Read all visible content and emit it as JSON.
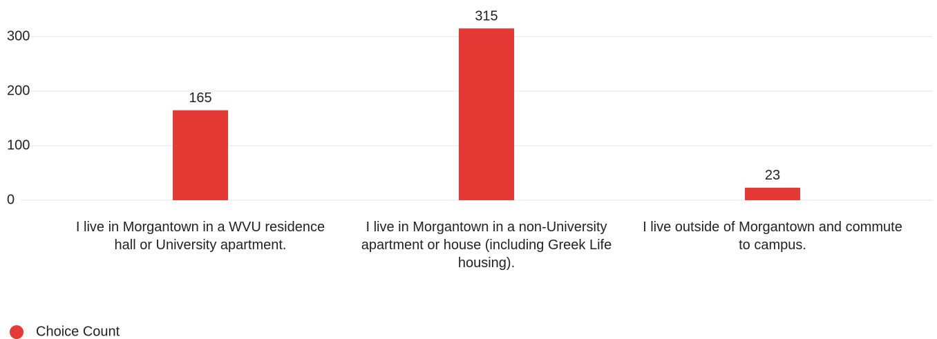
{
  "chart_data": {
    "type": "bar",
    "categories": [
      "I live in Morgantown in a WVU residence hall or University apartment.",
      "I live in Morgantown in a non-University apartment or house (including Greek Life housing).",
      "I live outside of Morgantown and commute to campus."
    ],
    "series": [
      {
        "name": "Choice Count",
        "color": "#e53935",
        "values": [
          165,
          315,
          23
        ]
      }
    ],
    "ylim": [
      0,
      350
    ],
    "yticks": [
      0,
      100,
      200,
      300
    ],
    "grid": true,
    "legend": "bottom-left"
  }
}
